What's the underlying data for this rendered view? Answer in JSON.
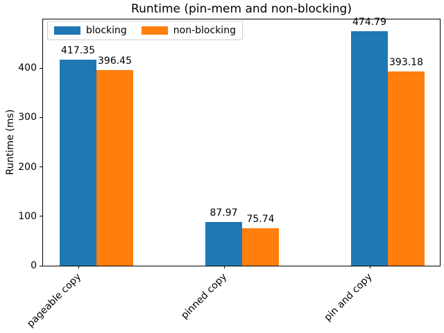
{
  "chart_data": {
    "type": "bar",
    "title": "Runtime (pin-mem and non-blocking)",
    "xlabel": "",
    "ylabel": "Runtime (ms)",
    "categories": [
      "pageable copy",
      "pinned copy",
      "pin and copy"
    ],
    "series": [
      {
        "name": "blocking",
        "color": "#1f77b4",
        "values": [
          417.35,
          87.97,
          474.79
        ]
      },
      {
        "name": "non-blocking",
        "color": "#ff7f0e",
        "values": [
          396.45,
          75.74,
          393.18
        ]
      }
    ],
    "bar_labels_shown": true,
    "ylim": [
      0,
      500
    ],
    "yticks": [
      0,
      100,
      200,
      300,
      400
    ],
    "grid": false,
    "legend": {
      "position": "upper-left"
    }
  },
  "colors": {
    "blocking": "#1f77b4",
    "non_blocking": "#ff7f0e",
    "spine": "#000000",
    "legend_border": "#cccccc",
    "text": "#000000",
    "background": "#ffffff"
  }
}
